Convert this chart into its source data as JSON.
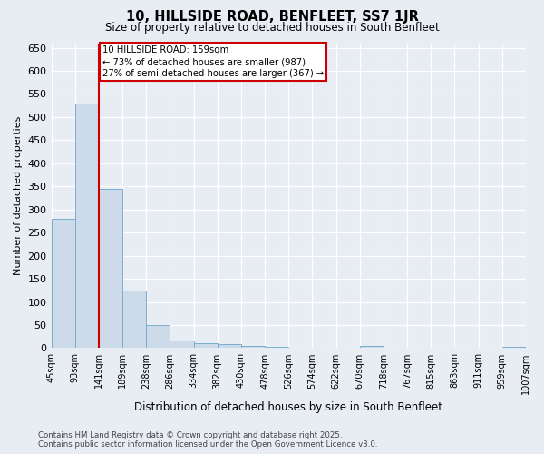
{
  "title": "10, HILLSIDE ROAD, BENFLEET, SS7 1JR",
  "subtitle": "Size of property relative to detached houses in South Benfleet",
  "xlabel": "Distribution of detached houses by size in South Benfleet",
  "ylabel": "Number of detached properties",
  "bar_color": "#ccdaea",
  "bar_edge_color": "#7aaece",
  "background_color": "#e8edf4",
  "grid_color": "#ffffff",
  "bins": [
    "45sqm",
    "93sqm",
    "141sqm",
    "189sqm",
    "238sqm",
    "286sqm",
    "334sqm",
    "382sqm",
    "430sqm",
    "478sqm",
    "526sqm",
    "574sqm",
    "622sqm",
    "670sqm",
    "718sqm",
    "767sqm",
    "815sqm",
    "863sqm",
    "911sqm",
    "959sqm",
    "1007sqm"
  ],
  "values": [
    280,
    530,
    345,
    125,
    50,
    16,
    10,
    8,
    5,
    3,
    0,
    0,
    0,
    5,
    0,
    0,
    0,
    0,
    0,
    3
  ],
  "red_line_x": 2.0,
  "annotation_text": "10 HILLSIDE ROAD: 159sqm\n← 73% of detached houses are smaller (987)\n27% of semi-detached houses are larger (367) →",
  "ylim": [
    0,
    660
  ],
  "yticks": [
    0,
    50,
    100,
    150,
    200,
    250,
    300,
    350,
    400,
    450,
    500,
    550,
    600,
    650
  ],
  "footer_line1": "Contains HM Land Registry data © Crown copyright and database right 2025.",
  "footer_line2": "Contains public sector information licensed under the Open Government Licence v3.0.",
  "red_line_color": "#cc0000",
  "annotation_box_facecolor": "#ffffff",
  "annotation_box_edgecolor": "#cc0000"
}
